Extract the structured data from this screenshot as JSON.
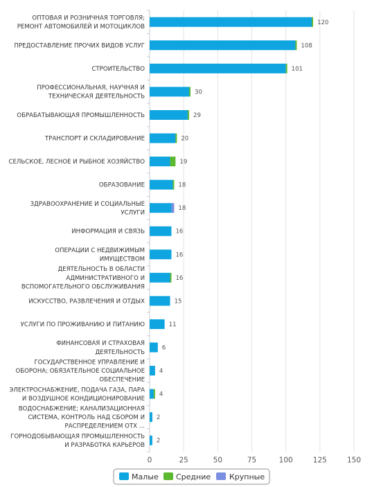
{
  "chart_data": {
    "type": "bar",
    "orientation": "horizontal",
    "stacked": true,
    "categories": [
      [
        "ОПТОВАЯ И РОЗНИЧНАЯ ТОРГОВЛЯ;",
        "РЕМОНТ АВТОМОБИЛЕЙ И МОТОЦИКЛОВ"
      ],
      [
        "ПРЕДОСТАВЛЕНИЕ ПРОЧИХ ВИДОВ УСЛУГ"
      ],
      [
        "СТРОИТЕЛЬСТВО"
      ],
      [
        "ПРОФЕССИОНАЛЬНАЯ, НАУЧНАЯ И",
        "ТЕХНИЧЕСКАЯ ДЕЯТЕЛЬНОСТЬ"
      ],
      [
        "ОБРАБАТЫВАЮЩАЯ ПРОМЫШЛЕННОСТЬ"
      ],
      [
        "ТРАНСПОРТ И СКЛАДИРОВАНИЕ"
      ],
      [
        "СЕЛЬСКОЕ, ЛЕСНОЕ И РЫБНОЕ ХОЗЯЙСТВО"
      ],
      [
        "ОБРАЗОВАНИЕ"
      ],
      [
        "ЗДРАВООХРАНЕНИЕ И СОЦИАЛЬНЫЕ",
        "УСЛУГИ"
      ],
      [
        "ИНФОРМАЦИЯ И СВЯЗЬ"
      ],
      [
        "ОПЕРАЦИИ С НЕДВИЖИМЫМ",
        "ИМУЩЕСТВОМ"
      ],
      [
        "ДЕЯТЕЛЬНОСТЬ В ОБЛАСТИ",
        "АДМИНИСТРАТИВНОГО И",
        "ВСПОМОГАТЕЛЬНОГО ОБСЛУЖИВАНИЯ"
      ],
      [
        "ИСКУССТВО, РАЗВЛЕЧЕНИЯ И ОТДЫХ"
      ],
      [
        "УСЛУГИ ПО ПРОЖИВАНИЮ И ПИТАНИЮ"
      ],
      [
        "ФИНАНСОВАЯ И СТРАХОВАЯ",
        "ДЕЯТЕЛЬНОСТЬ"
      ],
      [
        "ГОСУДАРСТВЕННОЕ УПРАВЛЕНИЕ И",
        "ОБОРОНА; ОБЯЗАТЕЛЬНОЕ СОЦИАЛЬНОЕ",
        "ОБЕСПЕЧЕНИЕ"
      ],
      [
        "ЭЛЕКТРОСНАБЖЕНИЕ, ПОДАЧА ГАЗА, ПАРА",
        "И ВОЗДУШНОЕ КОНДИЦИОНИРОВАНИЕ"
      ],
      [
        "ВОДОСНАБЖЕНИЕ; КАНАЛИЗАЦИОННАЯ",
        "СИСТЕМА, КОНТРОЛЬ НАД СБОРОМ И",
        "РАСПРЕДЕЛЕНИЕМ ОТХ ..."
      ],
      [
        "ГОРНОДОБЫВАЮЩАЯ ПРОМЫШЛЕННОСТЬ",
        "И РАЗРАБОТКА КАРЬЕРОВ"
      ]
    ],
    "series": [
      {
        "name": "Малые",
        "color": "#0ea5e0",
        "values": [
          119,
          107,
          100,
          29,
          28,
          19,
          15,
          17,
          16,
          16,
          16,
          15,
          15,
          11,
          6,
          4,
          3,
          2,
          2
        ]
      },
      {
        "name": "Средние",
        "color": "#5cb82e",
        "values": [
          1,
          1,
          1,
          1,
          1,
          1,
          4,
          1,
          0,
          0,
          0,
          1,
          0,
          0,
          0,
          0,
          1,
          0,
          0
        ]
      },
      {
        "name": "Крупные",
        "color": "#7b8fe0",
        "values": [
          0,
          0,
          0,
          0,
          0,
          0,
          0,
          0,
          2,
          0,
          0,
          0,
          0,
          0,
          0,
          0,
          0,
          0,
          0
        ]
      }
    ],
    "totals": [
      "120",
      "108",
      "101",
      "30",
      "29",
      "20",
      "19",
      "18",
      "18",
      "16",
      "16",
      "16",
      "15",
      "11",
      "6",
      "4",
      "4",
      "2",
      "2"
    ],
    "x_ticks": [
      "0",
      "25",
      "50",
      "75",
      "100",
      "125",
      "150"
    ],
    "xlim": [
      0,
      150
    ],
    "grid": true,
    "legend_position": "bottom-center",
    "legend": [
      "Малые",
      "Средние",
      "Крупные"
    ]
  }
}
